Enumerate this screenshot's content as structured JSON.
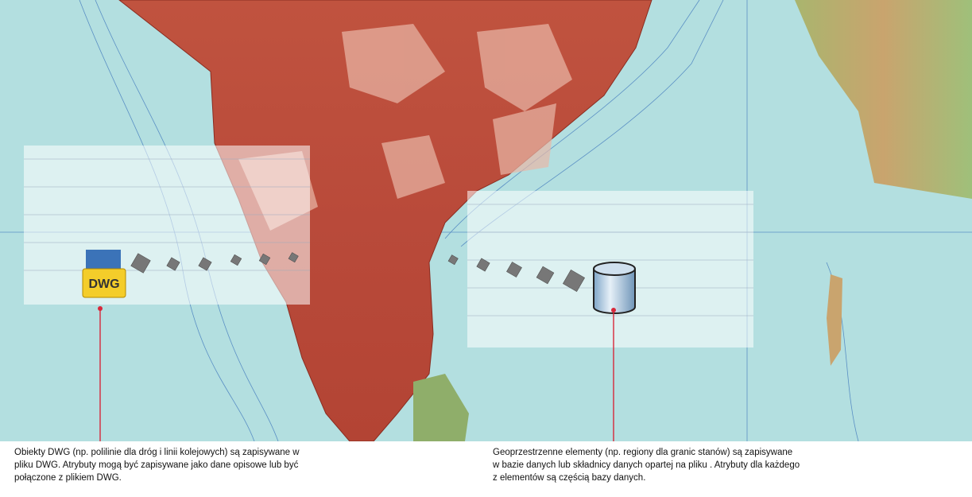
{
  "icon_label": "DWG",
  "captions": [
    {
      "lines": [
        "Obiekty DWG (np. polilinie dla dróg i linii kolejowych) są zapisywane w",
        "pliku DWG. Atrybuty mogą być zapisywane jako dane opisowe lub być",
        "połączone z plikiem DWG."
      ]
    },
    {
      "lines": [
        "Geoprzestrzenne elementy (np. regiony dla granic stanów) są zapisywane",
        "w bazie danych lub składnicy danych opartej na pliku . Atrybuty dla każdego",
        "z elementów są częścią bazy danych."
      ]
    }
  ]
}
